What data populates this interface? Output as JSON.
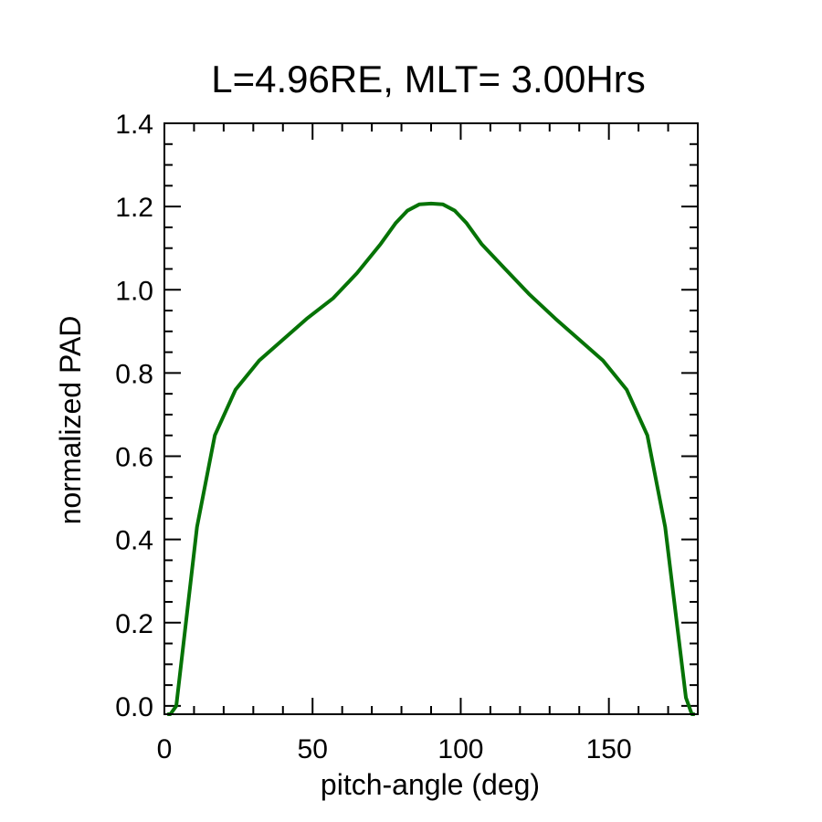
{
  "chart_data": {
    "type": "line",
    "title": "L=4.96RE, MLT= 3.00Hrs",
    "xlabel": "pitch-angle (deg)",
    "ylabel": "normalized PAD",
    "xlim": [
      0,
      180
    ],
    "ylim": [
      -0.02,
      1.4
    ],
    "xticks": [
      0,
      50,
      100,
      150
    ],
    "xtick_labels": [
      "0",
      "50",
      "100",
      "150"
    ],
    "yticks": [
      0.0,
      0.2,
      0.4,
      0.6,
      0.8,
      1.0,
      1.2,
      1.4
    ],
    "ytick_labels": [
      "0.0",
      "0.2",
      "0.4",
      "0.6",
      "0.8",
      "1.0",
      "1.2",
      "1.4"
    ],
    "grid": false,
    "legend": "none",
    "series": [
      {
        "color": "#067306",
        "x": [
          1,
          2,
          4,
          11,
          17,
          24,
          32,
          40,
          48,
          57,
          65,
          73,
          78,
          82,
          86,
          90,
          94,
          98,
          102,
          107,
          115,
          123,
          132,
          140,
          148,
          156,
          163,
          169,
          176,
          178,
          179
        ],
        "y": [
          -0.02,
          -0.02,
          0.0,
          0.43,
          0.65,
          0.76,
          0.83,
          0.88,
          0.93,
          0.98,
          1.04,
          1.11,
          1.16,
          1.19,
          1.205,
          1.207,
          1.205,
          1.19,
          1.16,
          1.11,
          1.05,
          0.99,
          0.93,
          0.88,
          0.83,
          0.76,
          0.65,
          0.43,
          0.02,
          -0.02,
          -0.02
        ]
      }
    ]
  }
}
